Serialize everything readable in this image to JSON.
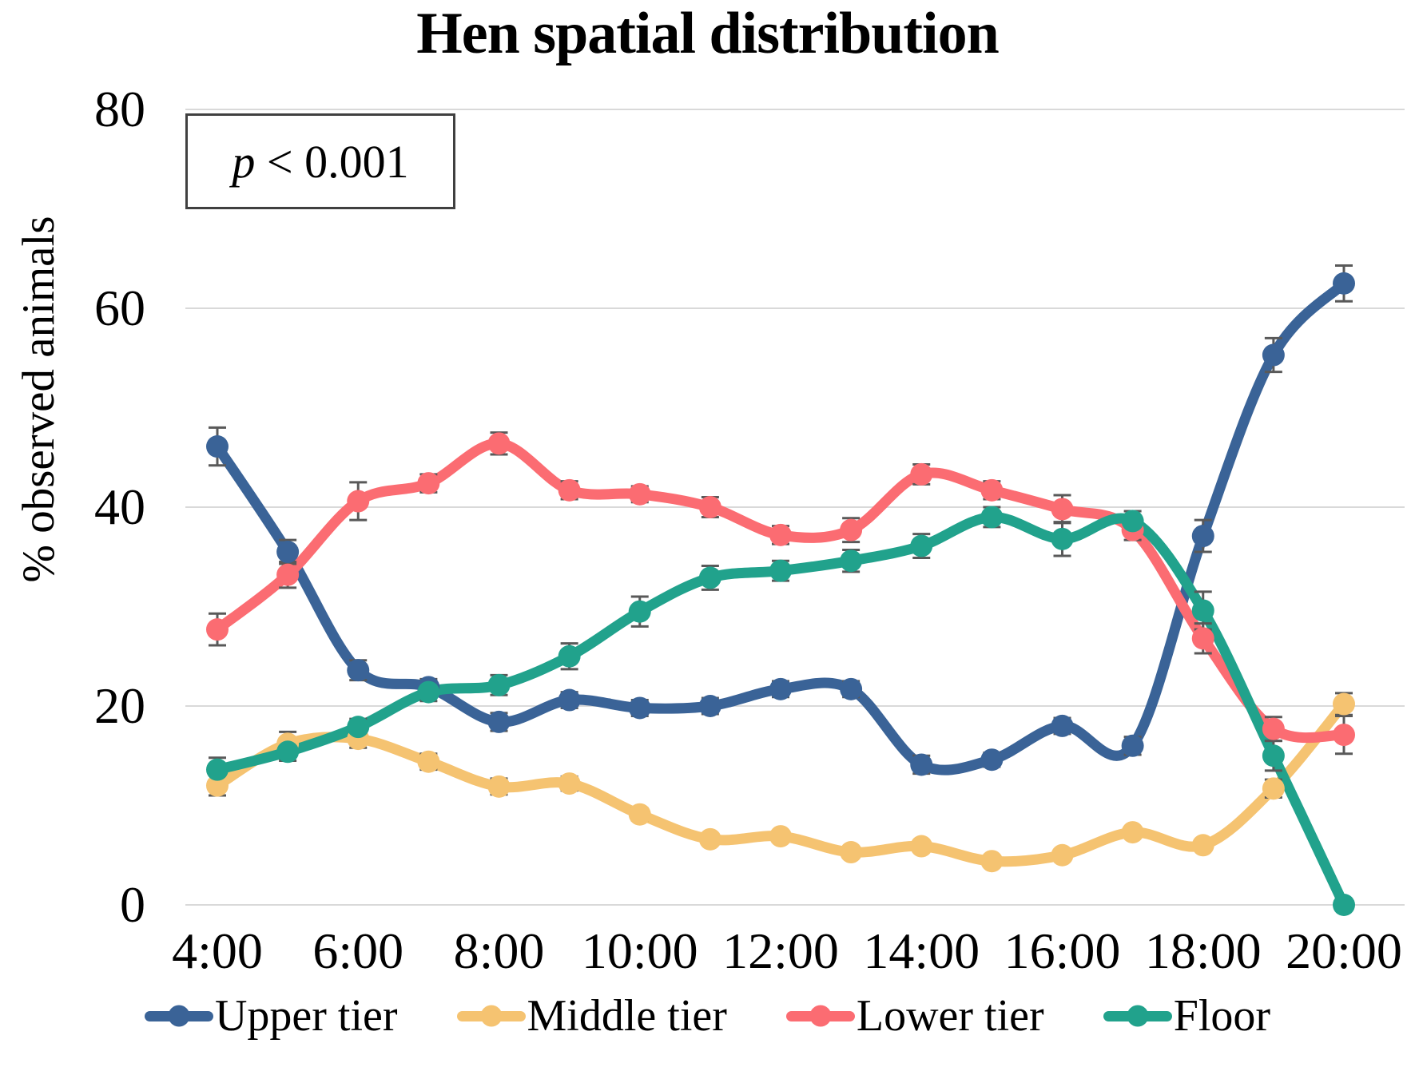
{
  "title": "Hen spatial distribution",
  "annotation": {
    "text_italic_part": "p",
    "text_rest": " < 0.001"
  },
  "y_axis": {
    "label": "% observed animals"
  },
  "colors": {
    "upper_tier": "#3A6397",
    "middle_tier": "#F5C371",
    "lower_tier": "#FB6C72",
    "floor": "#21A28C",
    "gridline": "#D9D9D9",
    "error_bar": "#595959"
  },
  "chart_data": {
    "type": "line",
    "title": "Hen spatial distribution",
    "xlabel": "",
    "ylabel": "% observed animals",
    "ylim": [
      0,
      80
    ],
    "yticks": [
      0,
      20,
      40,
      60,
      80
    ],
    "x_tick_shown_every": 2,
    "grid": true,
    "smoothed": true,
    "error_bars": true,
    "legend_position": "bottom",
    "annotation": "p < 0.001",
    "x": [
      "4:00",
      "5:00",
      "6:00",
      "7:00",
      "8:00",
      "9:00",
      "10:00",
      "11:00",
      "12:00",
      "13:00",
      "14:00",
      "15:00",
      "16:00",
      "17:00",
      "18:00",
      "19:00",
      "20:00"
    ],
    "series": [
      {
        "name": "Upper tier",
        "color": "#3A6397",
        "values": [
          46.1,
          35.5,
          23.6,
          21.9,
          18.4,
          20.6,
          19.8,
          20.0,
          21.7,
          21.7,
          14.1,
          14.6,
          18.0,
          16.0,
          37.1,
          55.3,
          62.5
        ],
        "errors": [
          1.9,
          1.2,
          1.0,
          0.8,
          0.9,
          0.8,
          0.8,
          0.8,
          0.8,
          0.8,
          0.9,
          0.7,
          0.8,
          0.9,
          1.6,
          1.7,
          1.8
        ]
      },
      {
        "name": "Middle tier",
        "color": "#F5C371",
        "values": [
          12.0,
          16.2,
          16.7,
          14.4,
          11.9,
          12.2,
          9.1,
          6.6,
          6.9,
          5.3,
          5.9,
          4.4,
          5.0,
          7.3,
          6.0,
          11.7,
          20.2
        ],
        "errors": [
          1.0,
          1.2,
          0.9,
          0.8,
          0.8,
          0.7,
          0.6,
          0.5,
          0.5,
          0.4,
          0.4,
          0.4,
          0.4,
          0.5,
          0.5,
          0.9,
          1.1
        ]
      },
      {
        "name": "Lower tier",
        "color": "#FB6C72",
        "values": [
          27.7,
          33.2,
          40.6,
          42.4,
          46.4,
          41.7,
          41.3,
          40.0,
          37.2,
          37.7,
          43.3,
          41.7,
          39.8,
          37.7,
          26.8,
          17.7,
          17.1
        ],
        "errors": [
          1.6,
          1.3,
          1.9,
          0.9,
          1.1,
          0.9,
          0.8,
          1.0,
          0.9,
          1.2,
          1.0,
          0.9,
          1.4,
          1.0,
          1.5,
          1.2,
          1.9
        ]
      },
      {
        "name": "Floor",
        "color": "#21A28C",
        "values": [
          13.6,
          15.4,
          17.9,
          21.4,
          22.1,
          25.0,
          29.5,
          32.9,
          33.6,
          34.6,
          36.1,
          39.0,
          36.8,
          38.6,
          29.6,
          15.0,
          0.0
        ],
        "errors": [
          1.2,
          0.9,
          0.8,
          0.9,
          1.0,
          1.3,
          1.5,
          1.2,
          1.0,
          1.1,
          1.2,
          1.0,
          1.7,
          1.0,
          1.9,
          1.5,
          0
        ]
      }
    ]
  }
}
